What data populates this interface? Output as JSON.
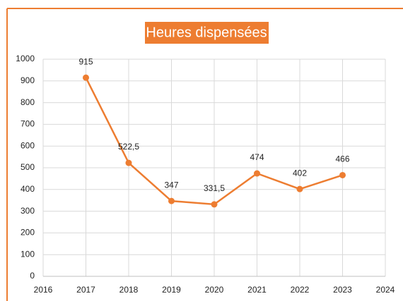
{
  "chart_data": {
    "type": "line",
    "title": "Heures dispensées",
    "x": [
      2017,
      2018,
      2019,
      2020,
      2021,
      2022,
      2023
    ],
    "values": [
      915,
      522.5,
      347,
      331.5,
      474,
      402,
      466
    ],
    "value_labels": [
      "915",
      "522,5",
      "347",
      "331,5",
      "474",
      "402",
      "466"
    ],
    "color": "#ed7d31",
    "xlim": [
      2016,
      2024
    ],
    "xticks": [
      2016,
      2017,
      2018,
      2019,
      2020,
      2021,
      2022,
      2023,
      2024
    ],
    "ylim": [
      0,
      1000
    ],
    "yticks": [
      0,
      100,
      200,
      300,
      400,
      500,
      600,
      700,
      800,
      900,
      1000
    ],
    "grid": true
  }
}
